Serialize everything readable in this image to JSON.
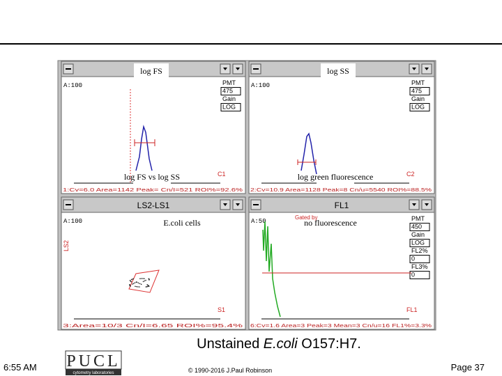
{
  "panels": [
    {
      "overlay": "log FS",
      "count": "A:100",
      "region": "C1",
      "footer": "1:Cv=6.0 Area=1142 Peak= Cn/I=521 ROI%=92.6%",
      "settings": [
        "PMT",
        "475",
        "Gain",
        "LOG"
      ],
      "bottom_overlay": "log FS vs log SS"
    },
    {
      "overlay": "log SS",
      "count": "A:100",
      "region": "C2",
      "footer": "2:Cv=10.9 Area=1128 Peak=8 Cn/u=5540 ROI%=88.5%",
      "settings": [
        "PMT",
        "475",
        "Gain",
        "LOG"
      ],
      "bottom_overlay": "log green fluorescence"
    },
    {
      "title": "LS2-LS1",
      "overlay": "E.coli cells",
      "count": "A:100",
      "region": "S1",
      "y_label": "LS2",
      "footer": "3:Area=10/3 Cn/I=6.65 ROI%=95.4%"
    },
    {
      "title": "FL1",
      "overlay": "no fluorescence",
      "count": "A:50",
      "region": "FL1",
      "gate": "Gated by",
      "footer": "6:Cv=1.6 Area=3 Peak=3 Mean=3 Cn/u=16 FL1%=3.3%",
      "settings": [
        "PMT",
        "450",
        "Gain",
        "LOG",
        "FL2%",
        "0",
        "FL3%",
        "0"
      ]
    }
  ],
  "caption": {
    "pre": "Unstained ",
    "italic": "E.coli",
    "post": " O157:H7."
  },
  "footer": {
    "time": "6:55 AM",
    "logo": "PUCL",
    "logo_sub": "cytometry laboratories",
    "copyright": "© 1990-2016 J.Paul Robinson",
    "page": "Page 37"
  }
}
